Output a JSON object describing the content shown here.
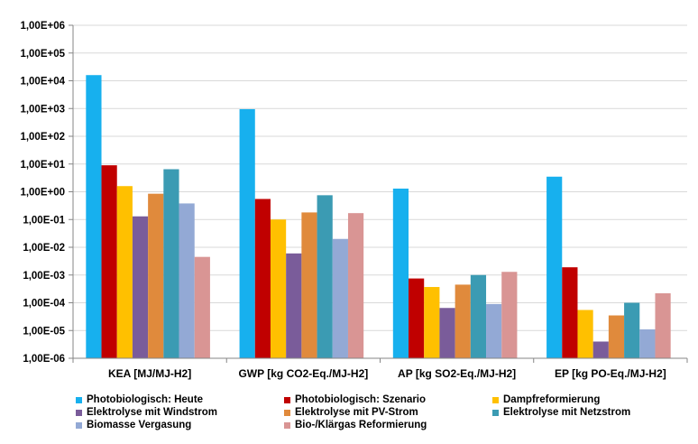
{
  "chart_data": {
    "type": "bar",
    "yscale": "log",
    "ylim": [
      1e-06,
      1000000.0
    ],
    "grid": true,
    "legend_position": "bottom",
    "y_tick_labels": [
      "1,00E-06",
      "1,00E-05",
      "1,00E-04",
      "1,00E-03",
      "1,00E-02",
      "1,00E-01",
      "1,00E+00",
      "1,00E+01",
      "1,00E+02",
      "1,00E+03",
      "1,00E+04",
      "1,00E+05",
      "1,00E+06"
    ],
    "categories": [
      "KEA [MJ/MJ-H2]",
      "GWP [kg CO2-Eq./MJ-H2]",
      "AP [kg SO2-Eq./MJ-H2]",
      "EP [kg PO-Eq./MJ-H2]"
    ],
    "series": [
      {
        "name": "Photobiologisch: Heute",
        "color": "#17b0ee",
        "values": [
          16000,
          950,
          1.3,
          3.5
        ]
      },
      {
        "name": "Photobiologisch: Szenario",
        "color": "#c00000",
        "values": [
          9,
          0.55,
          0.00075,
          0.0019
        ]
      },
      {
        "name": "Dampfreformierung",
        "color": "#ffc000",
        "values": [
          1.6,
          0.1,
          0.00037,
          5.5e-05
        ]
      },
      {
        "name": "Elektrolyse mit Windstrom",
        "color": "#7a5c9a",
        "values": [
          0.13,
          0.006,
          6.5e-05,
          4e-06
        ]
      },
      {
        "name": "Elektrolyse mit PV-Strom",
        "color": "#e08a3c",
        "values": [
          0.85,
          0.18,
          0.00045,
          3.5e-05
        ]
      },
      {
        "name": "Elektrolyse mit Netzstrom",
        "color": "#3b9bb3",
        "values": [
          6.5,
          0.75,
          0.001,
          0.0001
        ]
      },
      {
        "name": "Biomasse Vergasung",
        "color": "#93a9d5",
        "values": [
          0.38,
          0.02,
          9e-05,
          1.1e-05
        ]
      },
      {
        "name": "Bio-/Klärgas Reformierung",
        "color": "#d99594",
        "values": [
          0.0045,
          0.17,
          0.0013,
          0.00022
        ]
      }
    ]
  }
}
